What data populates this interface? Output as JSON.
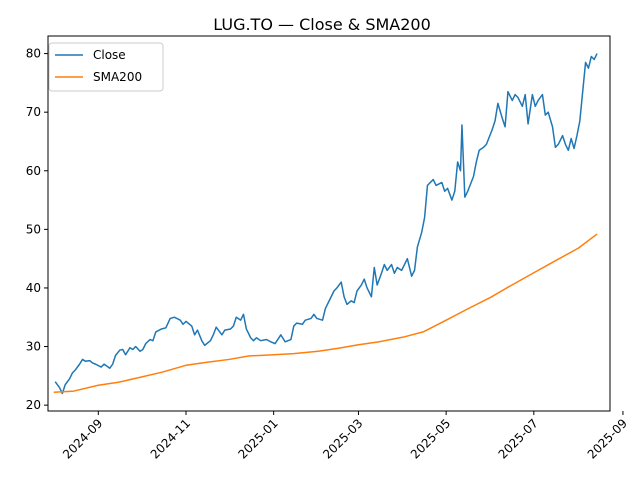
{
  "chart_data": {
    "type": "line",
    "title": "LUG.TO — Close & SMA200",
    "xlabel": "",
    "ylabel": "",
    "ylim": [
      19.0,
      83.0
    ],
    "xlim": [
      "2024-07-28",
      "2025-08-23"
    ],
    "grid": false,
    "legend_position": "top-left",
    "x_ticks": [
      "2024-09",
      "2024-11",
      "2025-01",
      "2025-03",
      "2025-05",
      "2025-07",
      "2025-09"
    ],
    "y_ticks": [
      20,
      30,
      40,
      50,
      60,
      70,
      80
    ],
    "series": [
      {
        "name": "Close",
        "color": "#1f77b4",
        "points": [
          [
            "2024-08-02",
            24.0
          ],
          [
            "2024-08-05",
            23.0
          ],
          [
            "2024-08-07",
            22.0
          ],
          [
            "2024-08-09",
            23.5
          ],
          [
            "2024-08-12",
            24.5
          ],
          [
            "2024-08-14",
            25.5
          ],
          [
            "2024-08-16",
            26.0
          ],
          [
            "2024-08-19",
            27.0
          ],
          [
            "2024-08-21",
            27.8
          ],
          [
            "2024-08-23",
            27.5
          ],
          [
            "2024-08-26",
            27.6
          ],
          [
            "2024-08-28",
            27.2
          ],
          [
            "2024-08-30",
            27.0
          ],
          [
            "2024-09-03",
            26.5
          ],
          [
            "2024-09-05",
            27.0
          ],
          [
            "2024-09-09",
            26.3
          ],
          [
            "2024-09-11",
            27.0
          ],
          [
            "2024-09-13",
            28.5
          ],
          [
            "2024-09-16",
            29.4
          ],
          [
            "2024-09-18",
            29.5
          ],
          [
            "2024-09-20",
            28.6
          ],
          [
            "2024-09-23",
            29.8
          ],
          [
            "2024-09-25",
            29.5
          ],
          [
            "2024-09-27",
            30.0
          ],
          [
            "2024-09-30",
            29.2
          ],
          [
            "2024-10-02",
            29.5
          ],
          [
            "2024-10-04",
            30.5
          ],
          [
            "2024-10-07",
            31.2
          ],
          [
            "2024-10-09",
            31.0
          ],
          [
            "2024-10-11",
            32.5
          ],
          [
            "2024-10-15",
            33.0
          ],
          [
            "2024-10-18",
            33.2
          ],
          [
            "2024-10-21",
            34.8
          ],
          [
            "2024-10-24",
            35.0
          ],
          [
            "2024-10-28",
            34.5
          ],
          [
            "2024-10-30",
            33.8
          ],
          [
            "2024-11-01",
            34.3
          ],
          [
            "2024-11-05",
            33.5
          ],
          [
            "2024-11-07",
            32.0
          ],
          [
            "2024-11-09",
            32.8
          ],
          [
            "2024-11-12",
            31.0
          ],
          [
            "2024-11-14",
            30.2
          ],
          [
            "2024-11-18",
            31.0
          ],
          [
            "2024-11-20",
            32.0
          ],
          [
            "2024-11-22",
            33.3
          ],
          [
            "2024-11-26",
            32.0
          ],
          [
            "2024-11-28",
            32.8
          ],
          [
            "2024-12-02",
            33.0
          ],
          [
            "2024-12-04",
            33.5
          ],
          [
            "2024-12-06",
            35.0
          ],
          [
            "2024-12-09",
            34.5
          ],
          [
            "2024-12-11",
            35.5
          ],
          [
            "2024-12-13",
            33.0
          ],
          [
            "2024-12-16",
            31.5
          ],
          [
            "2024-12-18",
            31.0
          ],
          [
            "2024-12-20",
            31.5
          ],
          [
            "2024-12-23",
            31.0
          ],
          [
            "2024-12-27",
            31.2
          ],
          [
            "2024-12-30",
            30.8
          ],
          [
            "2025-01-02",
            30.5
          ],
          [
            "2025-01-06",
            32.0
          ],
          [
            "2025-01-09",
            30.8
          ],
          [
            "2025-01-13",
            31.2
          ],
          [
            "2025-01-15",
            33.5
          ],
          [
            "2025-01-17",
            34.0
          ],
          [
            "2025-01-21",
            33.8
          ],
          [
            "2025-01-23",
            34.5
          ],
          [
            "2025-01-27",
            34.8
          ],
          [
            "2025-01-29",
            35.5
          ],
          [
            "2025-01-31",
            34.8
          ],
          [
            "2025-02-04",
            34.5
          ],
          [
            "2025-02-06",
            36.5
          ],
          [
            "2025-02-10",
            38.5
          ],
          [
            "2025-02-12",
            39.5
          ],
          [
            "2025-02-14",
            40.0
          ],
          [
            "2025-02-17",
            41.0
          ],
          [
            "2025-02-19",
            38.5
          ],
          [
            "2025-02-21",
            37.2
          ],
          [
            "2025-02-24",
            37.8
          ],
          [
            "2025-02-26",
            37.5
          ],
          [
            "2025-02-28",
            39.5
          ],
          [
            "2025-03-03",
            40.5
          ],
          [
            "2025-03-05",
            41.5
          ],
          [
            "2025-03-07",
            40.0
          ],
          [
            "2025-03-10",
            38.5
          ],
          [
            "2025-03-12",
            43.5
          ],
          [
            "2025-03-14",
            40.5
          ],
          [
            "2025-03-17",
            42.5
          ],
          [
            "2025-03-19",
            44.0
          ],
          [
            "2025-03-21",
            43.0
          ],
          [
            "2025-03-24",
            44.0
          ],
          [
            "2025-03-26",
            42.5
          ],
          [
            "2025-03-28",
            43.5
          ],
          [
            "2025-03-31",
            43.0
          ],
          [
            "2025-04-02",
            44.0
          ],
          [
            "2025-04-04",
            45.0
          ],
          [
            "2025-04-07",
            42.0
          ],
          [
            "2025-04-09",
            43.0
          ],
          [
            "2025-04-11",
            47.0
          ],
          [
            "2025-04-14",
            49.5
          ],
          [
            "2025-04-16",
            52.0
          ],
          [
            "2025-04-18",
            57.5
          ],
          [
            "2025-04-22",
            58.5
          ],
          [
            "2025-04-24",
            57.5
          ],
          [
            "2025-04-28",
            58.0
          ],
          [
            "2025-04-30",
            56.5
          ],
          [
            "2025-05-02",
            57.0
          ],
          [
            "2025-05-05",
            55.0
          ],
          [
            "2025-05-07",
            56.5
          ],
          [
            "2025-05-09",
            61.5
          ],
          [
            "2025-05-11",
            60.0
          ],
          [
            "2025-05-12",
            67.8
          ],
          [
            "2025-05-14",
            55.5
          ],
          [
            "2025-05-16",
            56.5
          ],
          [
            "2025-05-20",
            59.0
          ],
          [
            "2025-05-22",
            61.5
          ],
          [
            "2025-05-24",
            63.5
          ],
          [
            "2025-05-27",
            64.0
          ],
          [
            "2025-05-29",
            64.5
          ],
          [
            "2025-06-02",
            67.0
          ],
          [
            "2025-06-04",
            68.5
          ],
          [
            "2025-06-06",
            71.5
          ],
          [
            "2025-06-09",
            69.0
          ],
          [
            "2025-06-11",
            67.5
          ],
          [
            "2025-06-13",
            73.5
          ],
          [
            "2025-06-16",
            72.0
          ],
          [
            "2025-06-18",
            73.0
          ],
          [
            "2025-06-20",
            72.5
          ],
          [
            "2025-06-23",
            71.0
          ],
          [
            "2025-06-25",
            73.0
          ],
          [
            "2025-06-27",
            68.0
          ],
          [
            "2025-06-30",
            73.0
          ],
          [
            "2025-07-02",
            71.0
          ],
          [
            "2025-07-04",
            72.0
          ],
          [
            "2025-07-07",
            73.0
          ],
          [
            "2025-07-09",
            69.5
          ],
          [
            "2025-07-11",
            70.0
          ],
          [
            "2025-07-14",
            67.5
          ],
          [
            "2025-07-16",
            64.0
          ],
          [
            "2025-07-18",
            64.5
          ],
          [
            "2025-07-21",
            66.0
          ],
          [
            "2025-07-23",
            64.5
          ],
          [
            "2025-07-25",
            63.5
          ],
          [
            "2025-07-27",
            65.5
          ],
          [
            "2025-07-29",
            63.8
          ],
          [
            "2025-07-31",
            66.0
          ],
          [
            "2025-08-02",
            68.5
          ],
          [
            "2025-08-04",
            73.5
          ],
          [
            "2025-08-06",
            78.5
          ],
          [
            "2025-08-08",
            77.5
          ],
          [
            "2025-08-10",
            79.5
          ],
          [
            "2025-08-12",
            79.0
          ],
          [
            "2025-08-14",
            80.0
          ]
        ]
      },
      {
        "name": "SMA200",
        "color": "#ff7f0e",
        "points": [
          [
            "2024-08-01",
            22.2
          ],
          [
            "2024-08-15",
            22.4
          ],
          [
            "2024-09-01",
            23.4
          ],
          [
            "2024-09-15",
            23.9
          ],
          [
            "2024-10-01",
            24.8
          ],
          [
            "2024-10-15",
            25.6
          ],
          [
            "2024-11-01",
            26.8
          ],
          [
            "2024-11-15",
            27.3
          ],
          [
            "2024-12-01",
            27.8
          ],
          [
            "2024-12-15",
            28.4
          ],
          [
            "2025-01-01",
            28.6
          ],
          [
            "2025-01-15",
            28.8
          ],
          [
            "2025-02-01",
            29.2
          ],
          [
            "2025-02-15",
            29.7
          ],
          [
            "2025-03-01",
            30.3
          ],
          [
            "2025-03-15",
            30.8
          ],
          [
            "2025-04-01",
            31.6
          ],
          [
            "2025-04-15",
            32.5
          ],
          [
            "2025-05-01",
            34.5
          ],
          [
            "2025-05-15",
            36.3
          ],
          [
            "2025-06-01",
            38.4
          ],
          [
            "2025-06-15",
            40.4
          ],
          [
            "2025-07-01",
            42.6
          ],
          [
            "2025-07-15",
            44.5
          ],
          [
            "2025-08-01",
            46.8
          ],
          [
            "2025-08-14",
            49.2
          ]
        ]
      }
    ]
  }
}
